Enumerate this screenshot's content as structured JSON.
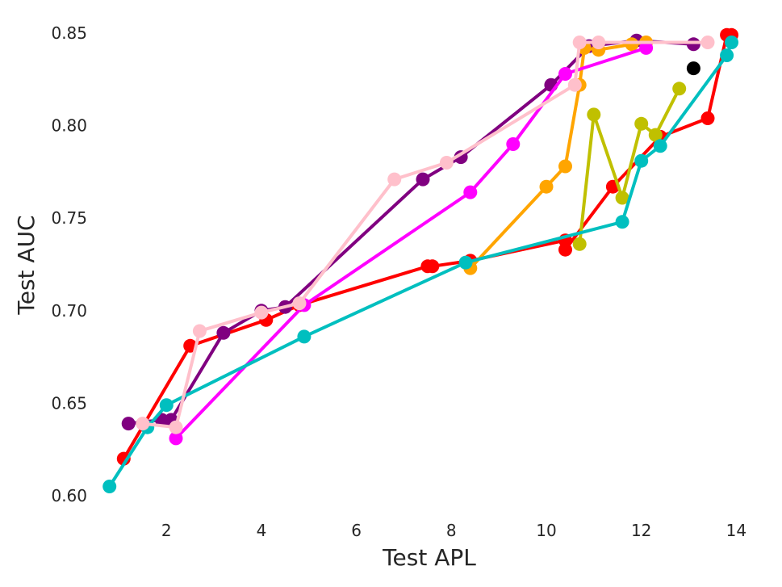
{
  "chart_data": {
    "type": "line",
    "title": "",
    "xlabel": "Test APL",
    "ylabel": "Test AUC",
    "xlim": [
      0.5,
      14.3
    ],
    "ylim": [
      0.593,
      0.857
    ],
    "x_ticks": [
      2,
      4,
      6,
      8,
      10,
      12,
      14
    ],
    "x_tick_labels": [
      "2",
      "4",
      "6",
      "8",
      "10",
      "12",
      "14"
    ],
    "y_ticks": [
      0.6,
      0.65,
      0.7,
      0.75,
      0.8,
      0.85
    ],
    "y_tick_labels": [
      "0.60",
      "0.65",
      "0.70",
      "0.75",
      "0.80",
      "0.85"
    ],
    "grid": false,
    "legend": "none",
    "series": [
      {
        "color": "#ff0000",
        "points": [
          [
            1.1,
            0.62
          ],
          [
            2.5,
            0.681
          ],
          [
            4.1,
            0.695
          ],
          [
            4.8,
            0.703
          ],
          [
            7.5,
            0.724
          ],
          [
            7.6,
            0.724
          ],
          [
            8.4,
            0.727
          ],
          [
            10.4,
            0.738
          ],
          [
            10.4,
            0.733
          ],
          [
            11.4,
            0.767
          ],
          [
            12.4,
            0.794
          ],
          [
            13.4,
            0.804
          ],
          [
            13.8,
            0.849
          ],
          [
            13.9,
            0.849
          ]
        ]
      },
      {
        "color": "#800080",
        "points": [
          [
            1.2,
            0.639
          ],
          [
            1.9,
            0.641
          ],
          [
            2.1,
            0.641
          ],
          [
            3.2,
            0.688
          ],
          [
            4.0,
            0.7
          ],
          [
            4.5,
            0.702
          ],
          [
            7.4,
            0.771
          ],
          [
            8.2,
            0.783
          ],
          [
            10.1,
            0.822
          ],
          [
            10.9,
            0.843
          ],
          [
            11.9,
            0.846
          ],
          [
            13.1,
            0.844
          ]
        ]
      },
      {
        "color": "#ffa500",
        "points": [
          [
            8.4,
            0.723
          ],
          [
            10.0,
            0.767
          ],
          [
            10.4,
            0.778
          ],
          [
            10.7,
            0.822
          ],
          [
            10.8,
            0.842
          ],
          [
            11.1,
            0.841
          ],
          [
            11.8,
            0.844
          ],
          [
            12.1,
            0.845
          ]
        ]
      },
      {
        "color": "#c0c000",
        "points": [
          [
            10.7,
            0.736
          ],
          [
            11.0,
            0.806
          ],
          [
            11.6,
            0.761
          ],
          [
            12.0,
            0.801
          ],
          [
            12.3,
            0.795
          ],
          [
            12.8,
            0.82
          ]
        ]
      },
      {
        "color": "#ff00ff",
        "points": [
          [
            2.2,
            0.631
          ],
          [
            4.9,
            0.703
          ],
          [
            8.4,
            0.764
          ],
          [
            9.3,
            0.79
          ],
          [
            10.4,
            0.828
          ],
          [
            12.1,
            0.842
          ]
        ]
      },
      {
        "color": "#00bfbf",
        "points": [
          [
            0.8,
            0.605
          ],
          [
            1.6,
            0.637
          ],
          [
            2.0,
            0.649
          ],
          [
            4.9,
            0.686
          ],
          [
            8.3,
            0.726
          ],
          [
            11.6,
            0.748
          ],
          [
            12.0,
            0.781
          ],
          [
            12.4,
            0.789
          ],
          [
            13.8,
            0.838
          ],
          [
            13.9,
            0.845
          ]
        ]
      },
      {
        "color": "#ffc0cb",
        "points": [
          [
            1.5,
            0.639
          ],
          [
            2.2,
            0.637
          ],
          [
            2.7,
            0.689
          ],
          [
            4.0,
            0.699
          ],
          [
            4.8,
            0.704
          ],
          [
            6.8,
            0.771
          ],
          [
            7.9,
            0.78
          ],
          [
            10.6,
            0.822
          ],
          [
            10.7,
            0.845
          ],
          [
            11.1,
            0.845
          ],
          [
            13.4,
            0.845
          ]
        ]
      },
      {
        "color": "#000000",
        "marker_only": true,
        "points": [
          [
            13.1,
            0.831
          ]
        ]
      }
    ]
  }
}
